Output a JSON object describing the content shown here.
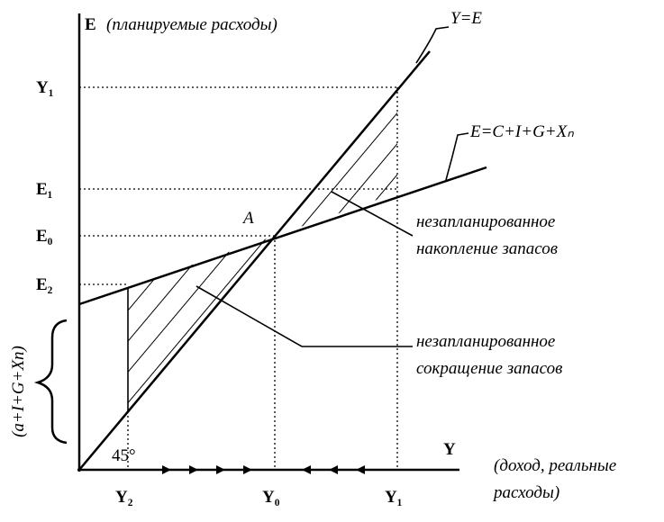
{
  "axes": {
    "y_label": "E",
    "y_caption": "(планируемые расходы)",
    "x_label": "Y",
    "x_caption": [
      "(доход, реальные",
      "расходы)"
    ]
  },
  "y_ticks": [
    "Y₁",
    "E₁",
    "E₀",
    "E₂"
  ],
  "x_ticks": [
    "Y₂",
    "Y₀",
    "Y₁"
  ],
  "lines": {
    "identity": "Y=E",
    "expenditure": "E=C+I+G+Xₙ"
  },
  "point": "A",
  "angle": "45°",
  "annotations": [
    {
      "lines": [
        "незапланированное",
        "накопление запасов"
      ]
    },
    {
      "lines": [
        "незапланированное",
        "сокращение запасов"
      ]
    }
  ],
  "intercept": "(a+I+G+Xn)"
}
